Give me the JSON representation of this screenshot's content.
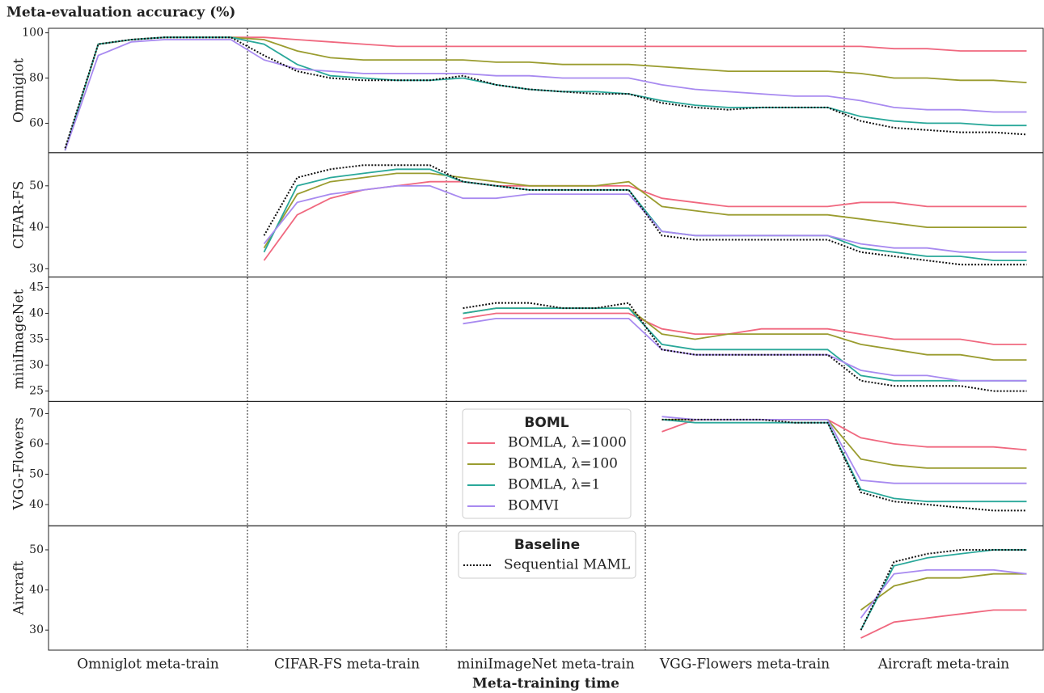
{
  "chart_data": {
    "type": "line",
    "title": "Meta-evaluation accuracy (%)",
    "x_label": "Meta-training time",
    "categories": [
      "Omniglot meta-train",
      "CIFAR-FS meta-train",
      "miniImageNet meta-train",
      "VGG-Flowers meta-train",
      "Aircraft meta-train"
    ],
    "legend_groups": [
      {
        "title": "BOML",
        "series": [
          0,
          1,
          2,
          3
        ]
      },
      {
        "title": "Baseline",
        "series": [
          4
        ]
      }
    ],
    "series": [
      {
        "name": "BOMLA, λ=1000",
        "color": "#f0687f",
        "style": "solid"
      },
      {
        "name": "BOMLA, λ=100",
        "color": "#9a9c2f",
        "style": "solid"
      },
      {
        "name": "BOMLA, λ=1",
        "color": "#2aa89a",
        "style": "solid"
      },
      {
        "name": "BOMVI",
        "color": "#a88af0",
        "style": "solid"
      },
      {
        "name": "Sequential MAML",
        "color": "#111111",
        "style": "dotted"
      }
    ],
    "panels": [
      {
        "y_label": "Omniglot",
        "ylim": [
          47,
          102
        ],
        "yticks": [
          60,
          80,
          100
        ],
        "values": [
          [
            48,
            95,
            97,
            98,
            98,
            98,
            98,
            97,
            96,
            95,
            94,
            94,
            94,
            94,
            94,
            94,
            94,
            94,
            94,
            94,
            94,
            94,
            94,
            94,
            94,
            93,
            93,
            92,
            92,
            92
          ],
          [
            48,
            95,
            97,
            98,
            98,
            98,
            97,
            92,
            89,
            88,
            88,
            88,
            88,
            87,
            87,
            86,
            86,
            86,
            85,
            84,
            83,
            83,
            83,
            83,
            82,
            80,
            80,
            79,
            79,
            78
          ],
          [
            48,
            95,
            97,
            98,
            98,
            98,
            95,
            86,
            81,
            80,
            79,
            79,
            80,
            77,
            75,
            74,
            74,
            73,
            70,
            68,
            67,
            67,
            67,
            67,
            63,
            61,
            60,
            60,
            59,
            59
          ],
          [
            48,
            90,
            96,
            97,
            97,
            97,
            88,
            84,
            83,
            82,
            82,
            82,
            82,
            81,
            81,
            80,
            80,
            80,
            77,
            75,
            74,
            73,
            72,
            72,
            70,
            67,
            66,
            66,
            65,
            65
          ],
          [
            49,
            95,
            97,
            98,
            98,
            98,
            90,
            83,
            80,
            79,
            79,
            79,
            81,
            77,
            75,
            74,
            73,
            73,
            69,
            67,
            66,
            67,
            67,
            67,
            61,
            58,
            57,
            56,
            56,
            55
          ]
        ]
      },
      {
        "y_label": "CIFAR-FS",
        "ylim": [
          28,
          58
        ],
        "yticks": [
          30,
          40,
          50
        ],
        "values": [
          [
            null,
            null,
            null,
            null,
            null,
            null,
            32,
            43,
            47,
            49,
            50,
            51,
            51,
            50,
            50,
            50,
            50,
            50,
            47,
            46,
            45,
            45,
            45,
            45,
            46,
            46,
            45,
            45,
            45,
            45
          ],
          [
            null,
            null,
            null,
            null,
            null,
            null,
            35,
            48,
            51,
            52,
            53,
            53,
            52,
            51,
            50,
            50,
            50,
            51,
            45,
            44,
            43,
            43,
            43,
            43,
            42,
            41,
            40,
            40,
            40,
            40
          ],
          [
            null,
            null,
            null,
            null,
            null,
            null,
            34,
            50,
            52,
            53,
            54,
            54,
            51,
            50,
            49,
            49,
            49,
            49,
            39,
            38,
            38,
            38,
            38,
            38,
            35,
            34,
            33,
            33,
            32,
            32
          ],
          [
            null,
            null,
            null,
            null,
            null,
            null,
            36,
            46,
            48,
            49,
            50,
            50,
            47,
            47,
            48,
            48,
            48,
            48,
            39,
            38,
            38,
            38,
            38,
            38,
            36,
            35,
            35,
            34,
            34,
            34
          ],
          [
            null,
            null,
            null,
            null,
            null,
            null,
            38,
            52,
            54,
            55,
            55,
            55,
            51,
            50,
            49,
            49,
            49,
            49,
            38,
            37,
            37,
            37,
            37,
            37,
            34,
            33,
            32,
            31,
            31,
            31
          ]
        ]
      },
      {
        "y_label": "miniImageNet",
        "ylim": [
          23,
          47
        ],
        "yticks": [
          25,
          30,
          35,
          40,
          45
        ],
        "values": [
          [
            null,
            null,
            null,
            null,
            null,
            null,
            null,
            null,
            null,
            null,
            null,
            null,
            39,
            40,
            40,
            40,
            40,
            40,
            37,
            36,
            36,
            37,
            37,
            37,
            36,
            35,
            35,
            35,
            34,
            34
          ],
          [
            null,
            null,
            null,
            null,
            null,
            null,
            null,
            null,
            null,
            null,
            null,
            null,
            40,
            41,
            41,
            41,
            41,
            41,
            36,
            35,
            36,
            36,
            36,
            36,
            34,
            33,
            32,
            32,
            31,
            31
          ],
          [
            null,
            null,
            null,
            null,
            null,
            null,
            null,
            null,
            null,
            null,
            null,
            null,
            40,
            41,
            41,
            41,
            41,
            41,
            34,
            33,
            33,
            33,
            33,
            33,
            28,
            27,
            27,
            27,
            27,
            27
          ],
          [
            null,
            null,
            null,
            null,
            null,
            null,
            null,
            null,
            null,
            null,
            null,
            null,
            38,
            39,
            39,
            39,
            39,
            39,
            33,
            32,
            32,
            32,
            32,
            32,
            29,
            28,
            28,
            27,
            27,
            27
          ],
          [
            null,
            null,
            null,
            null,
            null,
            null,
            null,
            null,
            null,
            null,
            null,
            null,
            41,
            42,
            42,
            41,
            41,
            42,
            33,
            32,
            32,
            32,
            32,
            32,
            27,
            26,
            26,
            26,
            25,
            25
          ]
        ]
      },
      {
        "y_label": "VGG-Flowers",
        "ylim": [
          33,
          74
        ],
        "yticks": [
          40,
          50,
          60,
          70
        ],
        "values": [
          [
            null,
            null,
            null,
            null,
            null,
            null,
            null,
            null,
            null,
            null,
            null,
            null,
            null,
            null,
            null,
            null,
            null,
            null,
            64,
            68,
            68,
            68,
            68,
            68,
            62,
            60,
            59,
            59,
            59,
            58
          ],
          [
            null,
            null,
            null,
            null,
            null,
            null,
            null,
            null,
            null,
            null,
            null,
            null,
            null,
            null,
            null,
            null,
            null,
            null,
            68,
            68,
            68,
            68,
            68,
            68,
            55,
            53,
            52,
            52,
            52,
            52
          ],
          [
            null,
            null,
            null,
            null,
            null,
            null,
            null,
            null,
            null,
            null,
            null,
            null,
            null,
            null,
            null,
            null,
            null,
            null,
            68,
            67,
            67,
            67,
            67,
            67,
            45,
            42,
            41,
            41,
            41,
            41
          ],
          [
            null,
            null,
            null,
            null,
            null,
            null,
            null,
            null,
            null,
            null,
            null,
            null,
            null,
            null,
            null,
            null,
            null,
            null,
            69,
            68,
            68,
            68,
            68,
            68,
            48,
            47,
            47,
            47,
            47,
            47
          ],
          [
            null,
            null,
            null,
            null,
            null,
            null,
            null,
            null,
            null,
            null,
            null,
            null,
            null,
            null,
            null,
            null,
            null,
            null,
            68,
            68,
            68,
            68,
            67,
            67,
            44,
            41,
            40,
            39,
            38,
            38
          ]
        ]
      },
      {
        "y_label": "Aircraft",
        "ylim": [
          25,
          56
        ],
        "yticks": [
          30,
          40,
          50
        ],
        "values": [
          [
            null,
            null,
            null,
            null,
            null,
            null,
            null,
            null,
            null,
            null,
            null,
            null,
            null,
            null,
            null,
            null,
            null,
            null,
            null,
            null,
            null,
            null,
            null,
            null,
            28,
            32,
            33,
            34,
            35,
            35
          ],
          [
            null,
            null,
            null,
            null,
            null,
            null,
            null,
            null,
            null,
            null,
            null,
            null,
            null,
            null,
            null,
            null,
            null,
            null,
            null,
            null,
            null,
            null,
            null,
            null,
            35,
            41,
            43,
            43,
            44,
            44
          ],
          [
            null,
            null,
            null,
            null,
            null,
            null,
            null,
            null,
            null,
            null,
            null,
            null,
            null,
            null,
            null,
            null,
            null,
            null,
            null,
            null,
            null,
            null,
            null,
            null,
            30,
            46,
            48,
            49,
            50,
            50
          ],
          [
            null,
            null,
            null,
            null,
            null,
            null,
            null,
            null,
            null,
            null,
            null,
            null,
            null,
            null,
            null,
            null,
            null,
            null,
            null,
            null,
            null,
            null,
            null,
            null,
            33,
            44,
            45,
            45,
            45,
            44
          ],
          [
            null,
            null,
            null,
            null,
            null,
            null,
            null,
            null,
            null,
            null,
            null,
            null,
            null,
            null,
            null,
            null,
            null,
            null,
            null,
            null,
            null,
            null,
            null,
            null,
            30,
            47,
            49,
            50,
            50,
            50
          ]
        ]
      }
    ]
  }
}
